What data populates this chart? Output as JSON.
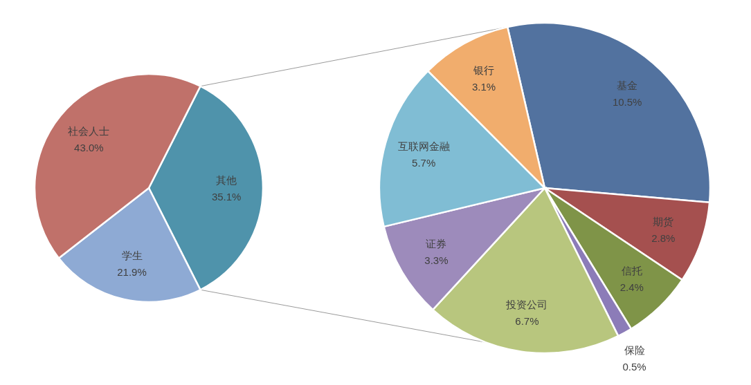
{
  "chart_data": [
    {
      "type": "pie",
      "categories": [
        "其他",
        "学生",
        "社会人士"
      ],
      "values": [
        35.1,
        21.9,
        43.0
      ],
      "colors": [
        "#4f93ab",
        "#8eaad4",
        "#c0716a"
      ],
      "value_labels": [
        "35.1%",
        "21.9%",
        "43.0%"
      ]
    },
    {
      "type": "pie",
      "categories": [
        "基金",
        "期货",
        "信托",
        "保险",
        "投资公司",
        "证券",
        "互联网金融",
        "银行"
      ],
      "values": [
        10.5,
        2.8,
        2.4,
        0.5,
        6.7,
        3.3,
        5.7,
        3.1
      ],
      "colors": [
        "#52729f",
        "#a5504f",
        "#7f9448",
        "#8c7cb8",
        "#b8c67e",
        "#9d8bbb",
        "#80bdd4",
        "#f1ad6d"
      ],
      "value_labels": [
        "10.5%",
        "2.8%",
        "2.4%",
        "0.5%",
        "6.7%",
        "3.3%",
        "5.7%",
        "3.1%"
      ]
    }
  ]
}
